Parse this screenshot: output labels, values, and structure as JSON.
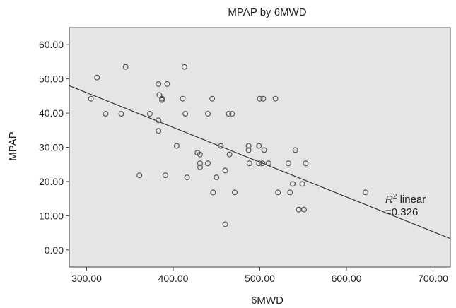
{
  "chart_data": {
    "type": "scatter",
    "title": "MPAP by 6MWD",
    "xlabel": "6MWD",
    "ylabel": "MPAP",
    "xlim": [
      280,
      720
    ],
    "ylim": [
      -5,
      65
    ],
    "x_ticks": [
      "300.00",
      "400.00",
      "500.00",
      "600.00",
      "700.00"
    ],
    "y_ticks": [
      "0.00",
      "10.00",
      "20.00",
      "30.00",
      "40.00",
      "50.00",
      "60.00"
    ],
    "grid": false,
    "colors": {
      "plot_background": "#e5e5e5",
      "marker": "#555555",
      "line": "#333333"
    },
    "fit_line": {
      "x": [
        280,
        720
      ],
      "y": [
        48,
        3.3
      ]
    },
    "annotation": {
      "prefix": "R",
      "superscript": "2",
      "line1_rest": " linear",
      "line2": "=0.326"
    },
    "points": [
      {
        "x": 305,
        "y": 44.2
      },
      {
        "x": 312,
        "y": 50.4
      },
      {
        "x": 322,
        "y": 39.8
      },
      {
        "x": 340,
        "y": 39.8
      },
      {
        "x": 345,
        "y": 53.5
      },
      {
        "x": 361,
        "y": 21.8
      },
      {
        "x": 373,
        "y": 39.8
      },
      {
        "x": 383,
        "y": 48.5
      },
      {
        "x": 384,
        "y": 45.3
      },
      {
        "x": 383,
        "y": 37.9
      },
      {
        "x": 383,
        "y": 34.8
      },
      {
        "x": 387,
        "y": 44.2
      },
      {
        "x": 387,
        "y": 43.8
      },
      {
        "x": 391,
        "y": 21.8
      },
      {
        "x": 393,
        "y": 48.5
      },
      {
        "x": 404,
        "y": 30.4
      },
      {
        "x": 411,
        "y": 44.2
      },
      {
        "x": 413,
        "y": 53.5
      },
      {
        "x": 414,
        "y": 39.8
      },
      {
        "x": 416,
        "y": 21.2
      },
      {
        "x": 428,
        "y": 28.4
      },
      {
        "x": 431,
        "y": 27.9
      },
      {
        "x": 431,
        "y": 25.3
      },
      {
        "x": 431,
        "y": 24.2
      },
      {
        "x": 440,
        "y": 39.8
      },
      {
        "x": 440,
        "y": 25.3
      },
      {
        "x": 445,
        "y": 44.2
      },
      {
        "x": 446,
        "y": 16.8
      },
      {
        "x": 450,
        "y": 21.2
      },
      {
        "x": 455,
        "y": 30.4
      },
      {
        "x": 460,
        "y": 23.2
      },
      {
        "x": 460,
        "y": 7.5
      },
      {
        "x": 464,
        "y": 39.8
      },
      {
        "x": 468,
        "y": 39.8
      },
      {
        "x": 465,
        "y": 27.9
      },
      {
        "x": 471,
        "y": 16.8
      },
      {
        "x": 487,
        "y": 30.4
      },
      {
        "x": 487,
        "y": 29.2
      },
      {
        "x": 488,
        "y": 25.3
      },
      {
        "x": 500,
        "y": 44.2
      },
      {
        "x": 504,
        "y": 44.2
      },
      {
        "x": 499,
        "y": 30.4
      },
      {
        "x": 505,
        "y": 29.2
      },
      {
        "x": 499,
        "y": 25.3
      },
      {
        "x": 503,
        "y": 25.3
      },
      {
        "x": 510,
        "y": 25.3
      },
      {
        "x": 518,
        "y": 44.2
      },
      {
        "x": 521,
        "y": 16.8
      },
      {
        "x": 533,
        "y": 25.3
      },
      {
        "x": 535,
        "y": 16.8
      },
      {
        "x": 538,
        "y": 19.3
      },
      {
        "x": 541,
        "y": 29.2
      },
      {
        "x": 545,
        "y": 11.8
      },
      {
        "x": 551,
        "y": 11.8
      },
      {
        "x": 549,
        "y": 19.3
      },
      {
        "x": 553,
        "y": 25.3
      },
      {
        "x": 622,
        "y": 16.8
      }
    ]
  }
}
